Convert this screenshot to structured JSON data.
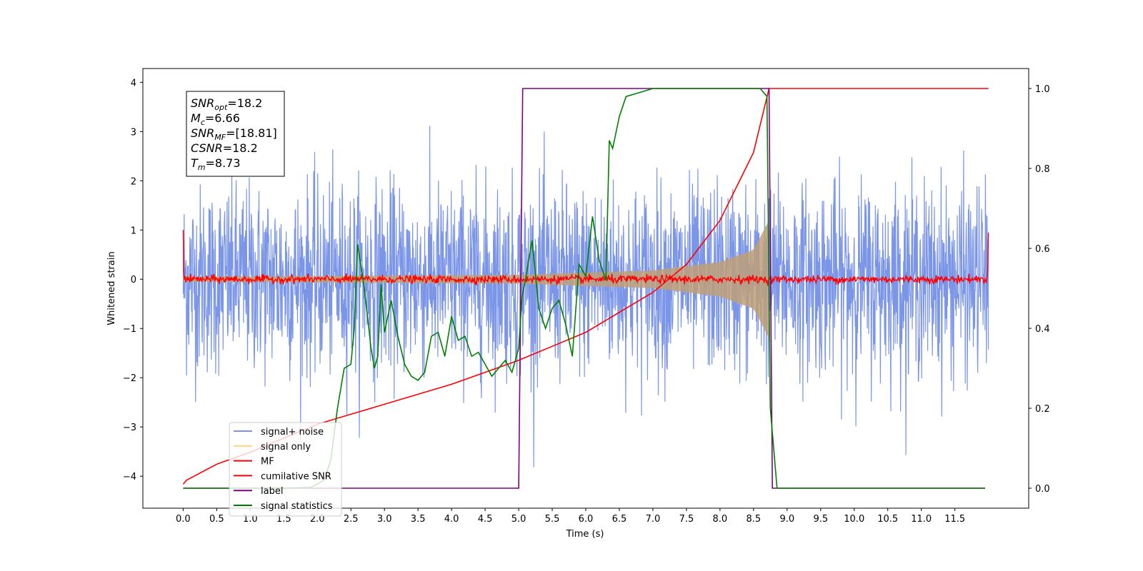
{
  "chart_data": {
    "type": "line",
    "x_axis": {
      "label": "Time (s)",
      "range": [
        -0.6,
        12.6
      ],
      "ticks": [
        0.0,
        0.5,
        1.0,
        1.5,
        2.0,
        2.5,
        3.0,
        3.5,
        4.0,
        4.5,
        5.0,
        5.5,
        6.0,
        6.5,
        7.0,
        7.5,
        8.0,
        8.5,
        9.0,
        9.5,
        10.0,
        10.5,
        11.0,
        11.5
      ],
      "tick_labels": [
        "0.0",
        "0.5",
        "1.0",
        "1.5",
        "2.0",
        "2.5",
        "3.0",
        "3.5",
        "4.0",
        "4.5",
        "5.0",
        "5.5",
        "6.0",
        "6.5",
        "7.0",
        "7.5",
        "8.0",
        "8.5",
        "9.0",
        "9.5",
        "10.0",
        "10.5",
        "11.0",
        "11.5"
      ]
    },
    "y_left": {
      "label": "Whitened strain",
      "range": [
        -4.65,
        4.28
      ],
      "ticks": [
        4,
        3,
        2,
        1,
        0,
        -1,
        -2,
        -3,
        -4
      ],
      "tick_labels": [
        "4",
        "3",
        "2",
        "1",
        "0",
        "−1",
        "−2",
        "−3",
        "−4"
      ]
    },
    "y_right": {
      "range": [
        -0.05,
        1.05
      ],
      "ticks": [
        1.0,
        0.8,
        0.6,
        0.4,
        0.2,
        0.0
      ],
      "tick_labels": [
        "1.0",
        "0.8",
        "0.6",
        "0.4",
        "0.2",
        "0.0"
      ]
    },
    "grid": false,
    "legend_position": "lower-left",
    "legend": [
      {
        "label": "signal+ noise",
        "color": "#7b95e8"
      },
      {
        "label": "signal only",
        "color": "#ffd27f"
      },
      {
        "label": "MF",
        "color": "#ff0000"
      },
      {
        "label": "cumilative SNR",
        "color": "#ff0000"
      },
      {
        "label": "label",
        "color": "#800080"
      },
      {
        "label": "signal statistics",
        "color": "#008000"
      }
    ],
    "series": [
      {
        "name": "signal+ noise",
        "axis": "left",
        "color": "#7b95e8",
        "kind": "noise",
        "x_range": [
          0.0,
          12.0
        ],
        "amplitude_std": 1.0
      },
      {
        "name": "signal only",
        "axis": "left",
        "color": "#c0a078",
        "kind": "chirp_envelope",
        "start": 0.0,
        "merger": 8.73,
        "envelope": [
          [
            0.0,
            0.05
          ],
          [
            5.0,
            0.09
          ],
          [
            7.0,
            0.18
          ],
          [
            8.0,
            0.35
          ],
          [
            8.5,
            0.6
          ],
          [
            8.73,
            1.2
          ]
        ]
      },
      {
        "name": "MF",
        "axis": "left",
        "color": "#ff0000",
        "kind": "noise_small",
        "x_range": [
          0.0,
          12.0
        ],
        "amplitude_std": 0.04,
        "edges": [
          [
            0.0,
            1.0
          ],
          [
            12.0,
            0.95
          ]
        ]
      },
      {
        "name": "cumilative SNR",
        "axis": "right",
        "color": "#ff0000",
        "points": [
          [
            0.0,
            0.01
          ],
          [
            0.05,
            0.02
          ],
          [
            0.5,
            0.06
          ],
          [
            1.0,
            0.09
          ],
          [
            2.0,
            0.16
          ],
          [
            3.0,
            0.21
          ],
          [
            4.0,
            0.26
          ],
          [
            5.0,
            0.32
          ],
          [
            6.0,
            0.39
          ],
          [
            7.0,
            0.49
          ],
          [
            7.5,
            0.56
          ],
          [
            8.0,
            0.67
          ],
          [
            8.5,
            0.84
          ],
          [
            8.73,
            1.0
          ],
          [
            12.0,
            1.0
          ]
        ]
      },
      {
        "name": "label",
        "axis": "right",
        "color": "#800080",
        "points": [
          [
            0.0,
            0.0
          ],
          [
            5.0,
            0.0
          ],
          [
            5.06,
            1.0
          ],
          [
            8.73,
            1.0
          ],
          [
            8.78,
            0.0
          ],
          [
            11.95,
            0.0
          ]
        ]
      },
      {
        "name": "signal statistics",
        "axis": "right",
        "color": "#008000",
        "points": [
          [
            0.0,
            0.0
          ],
          [
            1.0,
            0.0
          ],
          [
            1.5,
            0.0
          ],
          [
            1.9,
            0.002
          ],
          [
            2.1,
            0.02
          ],
          [
            2.2,
            0.07
          ],
          [
            2.3,
            0.2
          ],
          [
            2.4,
            0.3
          ],
          [
            2.5,
            0.31
          ],
          [
            2.55,
            0.4
          ],
          [
            2.6,
            0.61
          ],
          [
            2.7,
            0.5
          ],
          [
            2.8,
            0.35
          ],
          [
            2.85,
            0.3
          ],
          [
            2.9,
            0.33
          ],
          [
            2.95,
            0.51
          ],
          [
            3.0,
            0.39
          ],
          [
            3.1,
            0.47
          ],
          [
            3.2,
            0.38
          ],
          [
            3.3,
            0.31
          ],
          [
            3.4,
            0.28
          ],
          [
            3.5,
            0.27
          ],
          [
            3.6,
            0.29
          ],
          [
            3.7,
            0.38
          ],
          [
            3.8,
            0.39
          ],
          [
            3.9,
            0.33
          ],
          [
            4.0,
            0.43
          ],
          [
            4.1,
            0.37
          ],
          [
            4.2,
            0.38
          ],
          [
            4.3,
            0.33
          ],
          [
            4.4,
            0.34
          ],
          [
            4.5,
            0.31
          ],
          [
            4.6,
            0.28
          ],
          [
            4.7,
            0.3
          ],
          [
            4.8,
            0.32
          ],
          [
            4.9,
            0.29
          ],
          [
            5.0,
            0.35
          ],
          [
            5.05,
            0.48
          ],
          [
            5.1,
            0.52
          ],
          [
            5.2,
            0.62
          ],
          [
            5.3,
            0.45
          ],
          [
            5.4,
            0.4
          ],
          [
            5.5,
            0.45
          ],
          [
            5.6,
            0.47
          ],
          [
            5.7,
            0.41
          ],
          [
            5.8,
            0.33
          ],
          [
            5.9,
            0.56
          ],
          [
            6.0,
            0.53
          ],
          [
            6.1,
            0.68
          ],
          [
            6.2,
            0.57
          ],
          [
            6.3,
            0.52
          ],
          [
            6.35,
            0.87
          ],
          [
            6.4,
            0.85
          ],
          [
            6.5,
            0.93
          ],
          [
            6.6,
            0.98
          ],
          [
            6.8,
            0.99
          ],
          [
            7.0,
            1.0
          ],
          [
            8.0,
            1.0
          ],
          [
            8.6,
            1.0
          ],
          [
            8.7,
            0.98
          ],
          [
            8.75,
            0.2
          ],
          [
            8.85,
            0.0
          ],
          [
            11.95,
            0.0
          ]
        ]
      }
    ],
    "annotation": [
      {
        "var": "SNR",
        "sub": "opt",
        "text": "=18.2"
      },
      {
        "var": "M",
        "sub": "c",
        "text": "=6.66"
      },
      {
        "var": "SNR",
        "sub": "MF",
        "text": "=[18.81]"
      },
      {
        "var": "CSNR",
        "sub": "",
        "text": "=18.2"
      },
      {
        "var": "T",
        "sub": "m",
        "text": "=8.73"
      }
    ]
  }
}
